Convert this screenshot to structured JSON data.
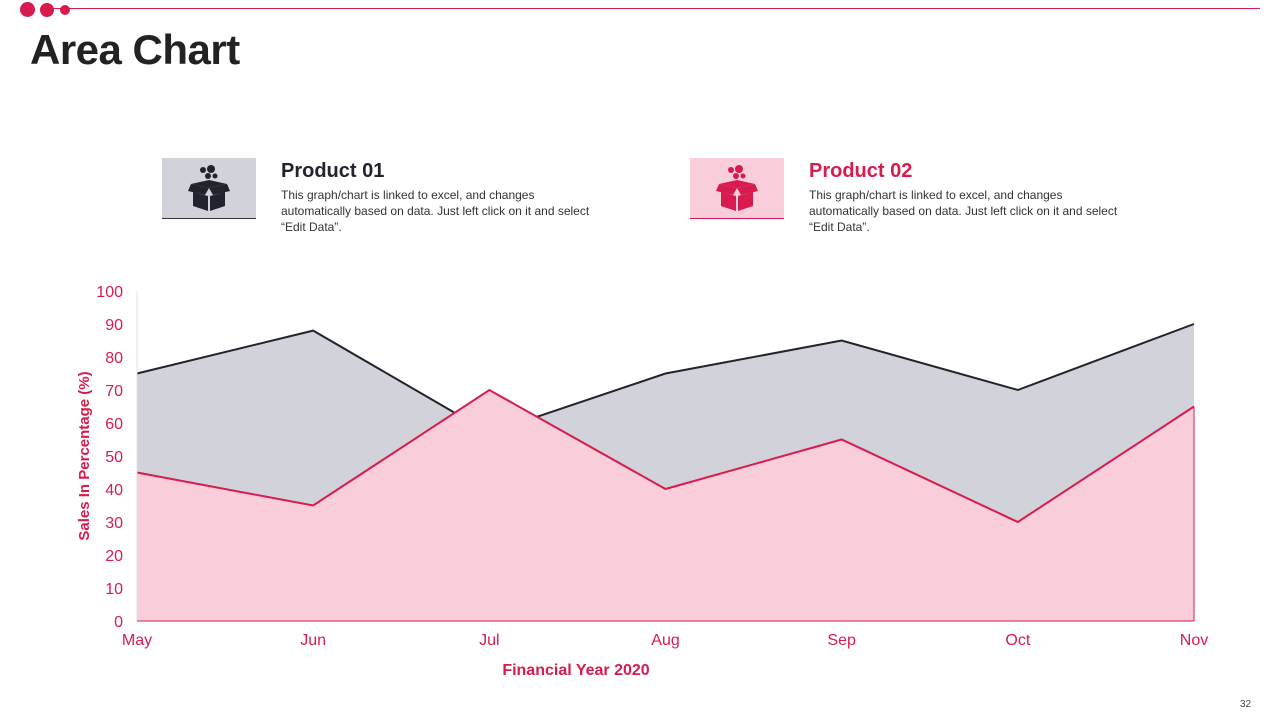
{
  "title": "Area Chart",
  "page_number": "32",
  "colors": {
    "accent": "#d81b4f",
    "dark": "#23232d",
    "grey_fill": "#d2d3da",
    "pink_fill": "#f9cdd9"
  },
  "legend": [
    {
      "title": "Product 01",
      "description": "This graph/chart is linked to excel, and changes automatically based on data. Just left click on it and select “Edit Data”.",
      "icon": "open-box-icon"
    },
    {
      "title": "Product 02",
      "description": "This graph/chart is linked to excel, and changes automatically based on data. Just left click on it and select “Edit Data”.",
      "icon": "open-box-icon"
    }
  ],
  "chart_data": {
    "type": "area",
    "categories": [
      "May",
      "Jun",
      "Jul",
      "Aug",
      "Sep",
      "Oct",
      "Nov"
    ],
    "series": [
      {
        "name": "Product 01",
        "values": [
          75,
          88,
          57,
          75,
          85,
          70,
          90
        ]
      },
      {
        "name": "Product 02",
        "values": [
          45,
          35,
          70,
          40,
          55,
          30,
          65
        ]
      }
    ],
    "title": "",
    "xlabel": "Financial Year 2020",
    "ylabel": "Sales In Percentage (%)",
    "ylim": [
      0,
      100
    ],
    "yticks": [
      0,
      10,
      20,
      30,
      40,
      50,
      60,
      70,
      80,
      90,
      100
    ],
    "grid": false
  }
}
